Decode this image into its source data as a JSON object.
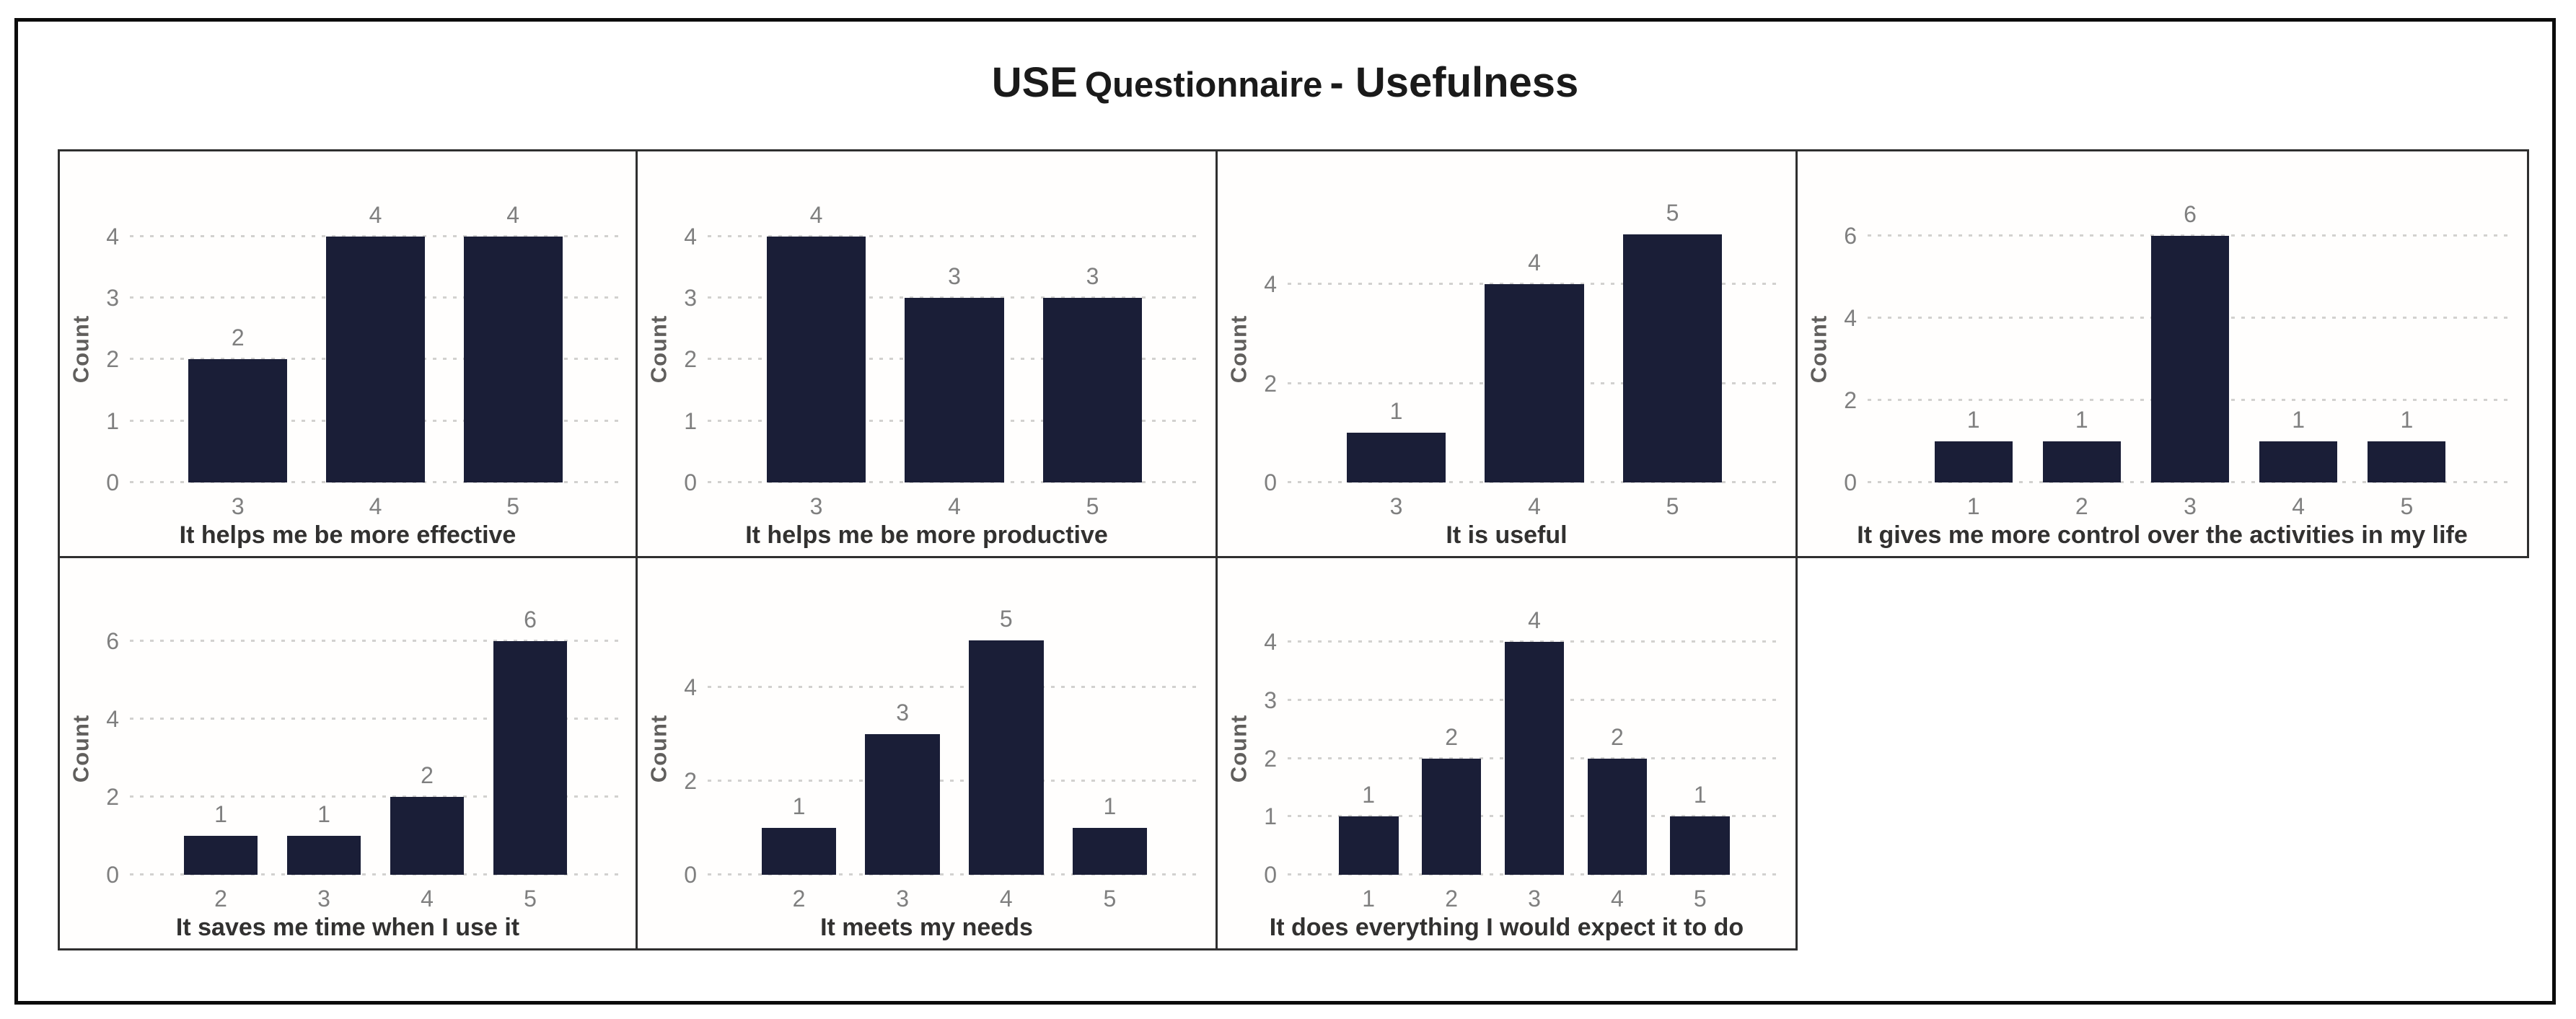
{
  "title": {
    "part1": "USE",
    "part2": "Questionnaire",
    "part3": "- Usefulness",
    "full": "USE Questionnaire - Usefulness"
  },
  "colors": {
    "bar": "#1a1e37",
    "tick_label": "#7f7f7f",
    "value_label": "#7f7f7f",
    "axis_title": "#323130",
    "count_label": "#605e5c",
    "gridline": "#d2d1cf",
    "panel_border": "#2f2f2f",
    "frame_border": "#0c0c0c"
  },
  "chart_data": [
    {
      "type": "bar",
      "xlabel": "It helps me be more effective",
      "ylabel": "Count",
      "categories": [
        "3",
        "4",
        "5"
      ],
      "values": [
        2,
        4,
        4
      ],
      "yticks": [
        0,
        1,
        2,
        3,
        4
      ],
      "ymax": 4.35,
      "grid": "dotted",
      "value_labels": true
    },
    {
      "type": "bar",
      "xlabel": "It helps me be more productive",
      "ylabel": "Count",
      "categories": [
        "3",
        "4",
        "5"
      ],
      "values": [
        4,
        3,
        3
      ],
      "yticks": [
        0,
        1,
        2,
        3,
        4
      ],
      "ymax": 4.35,
      "grid": "dotted",
      "value_labels": true
    },
    {
      "type": "bar",
      "xlabel": "It is useful",
      "ylabel": "Count",
      "categories": [
        "3",
        "4",
        "5"
      ],
      "values": [
        1,
        4,
        5
      ],
      "yticks": [
        0,
        2,
        4
      ],
      "ymax": 5.4,
      "grid": "dotted",
      "value_labels": true
    },
    {
      "type": "bar",
      "xlabel": "It gives me more control over the activities in my life",
      "ylabel": "Count",
      "categories": [
        "1",
        "2",
        "3",
        "4",
        "5"
      ],
      "values": [
        1,
        1,
        6,
        1,
        1
      ],
      "yticks": [
        0,
        2,
        4,
        6
      ],
      "ymax": 6.5,
      "grid": "dotted",
      "value_labels": true
    },
    {
      "type": "bar",
      "xlabel": "It saves me time when I use it",
      "ylabel": "Count",
      "categories": [
        "2",
        "3",
        "4",
        "5"
      ],
      "values": [
        1,
        1,
        2,
        6
      ],
      "yticks": [
        0,
        2,
        4,
        6
      ],
      "ymax": 6.5,
      "grid": "dotted",
      "value_labels": true
    },
    {
      "type": "bar",
      "xlabel": "It meets my needs",
      "ylabel": "Count",
      "categories": [
        "2",
        "3",
        "4",
        "5"
      ],
      "values": [
        1,
        3,
        5,
        1
      ],
      "yticks": [
        0,
        2,
        4
      ],
      "ymax": 5.4,
      "grid": "dotted",
      "value_labels": true
    },
    {
      "type": "bar",
      "xlabel": "It does everything I would expect it to do",
      "ylabel": "Count",
      "categories": [
        "1",
        "2",
        "3",
        "4",
        "5"
      ],
      "values": [
        1,
        2,
        4,
        2,
        1
      ],
      "yticks": [
        0,
        1,
        2,
        3,
        4
      ],
      "ymax": 4.35,
      "grid": "dotted",
      "value_labels": true
    }
  ]
}
